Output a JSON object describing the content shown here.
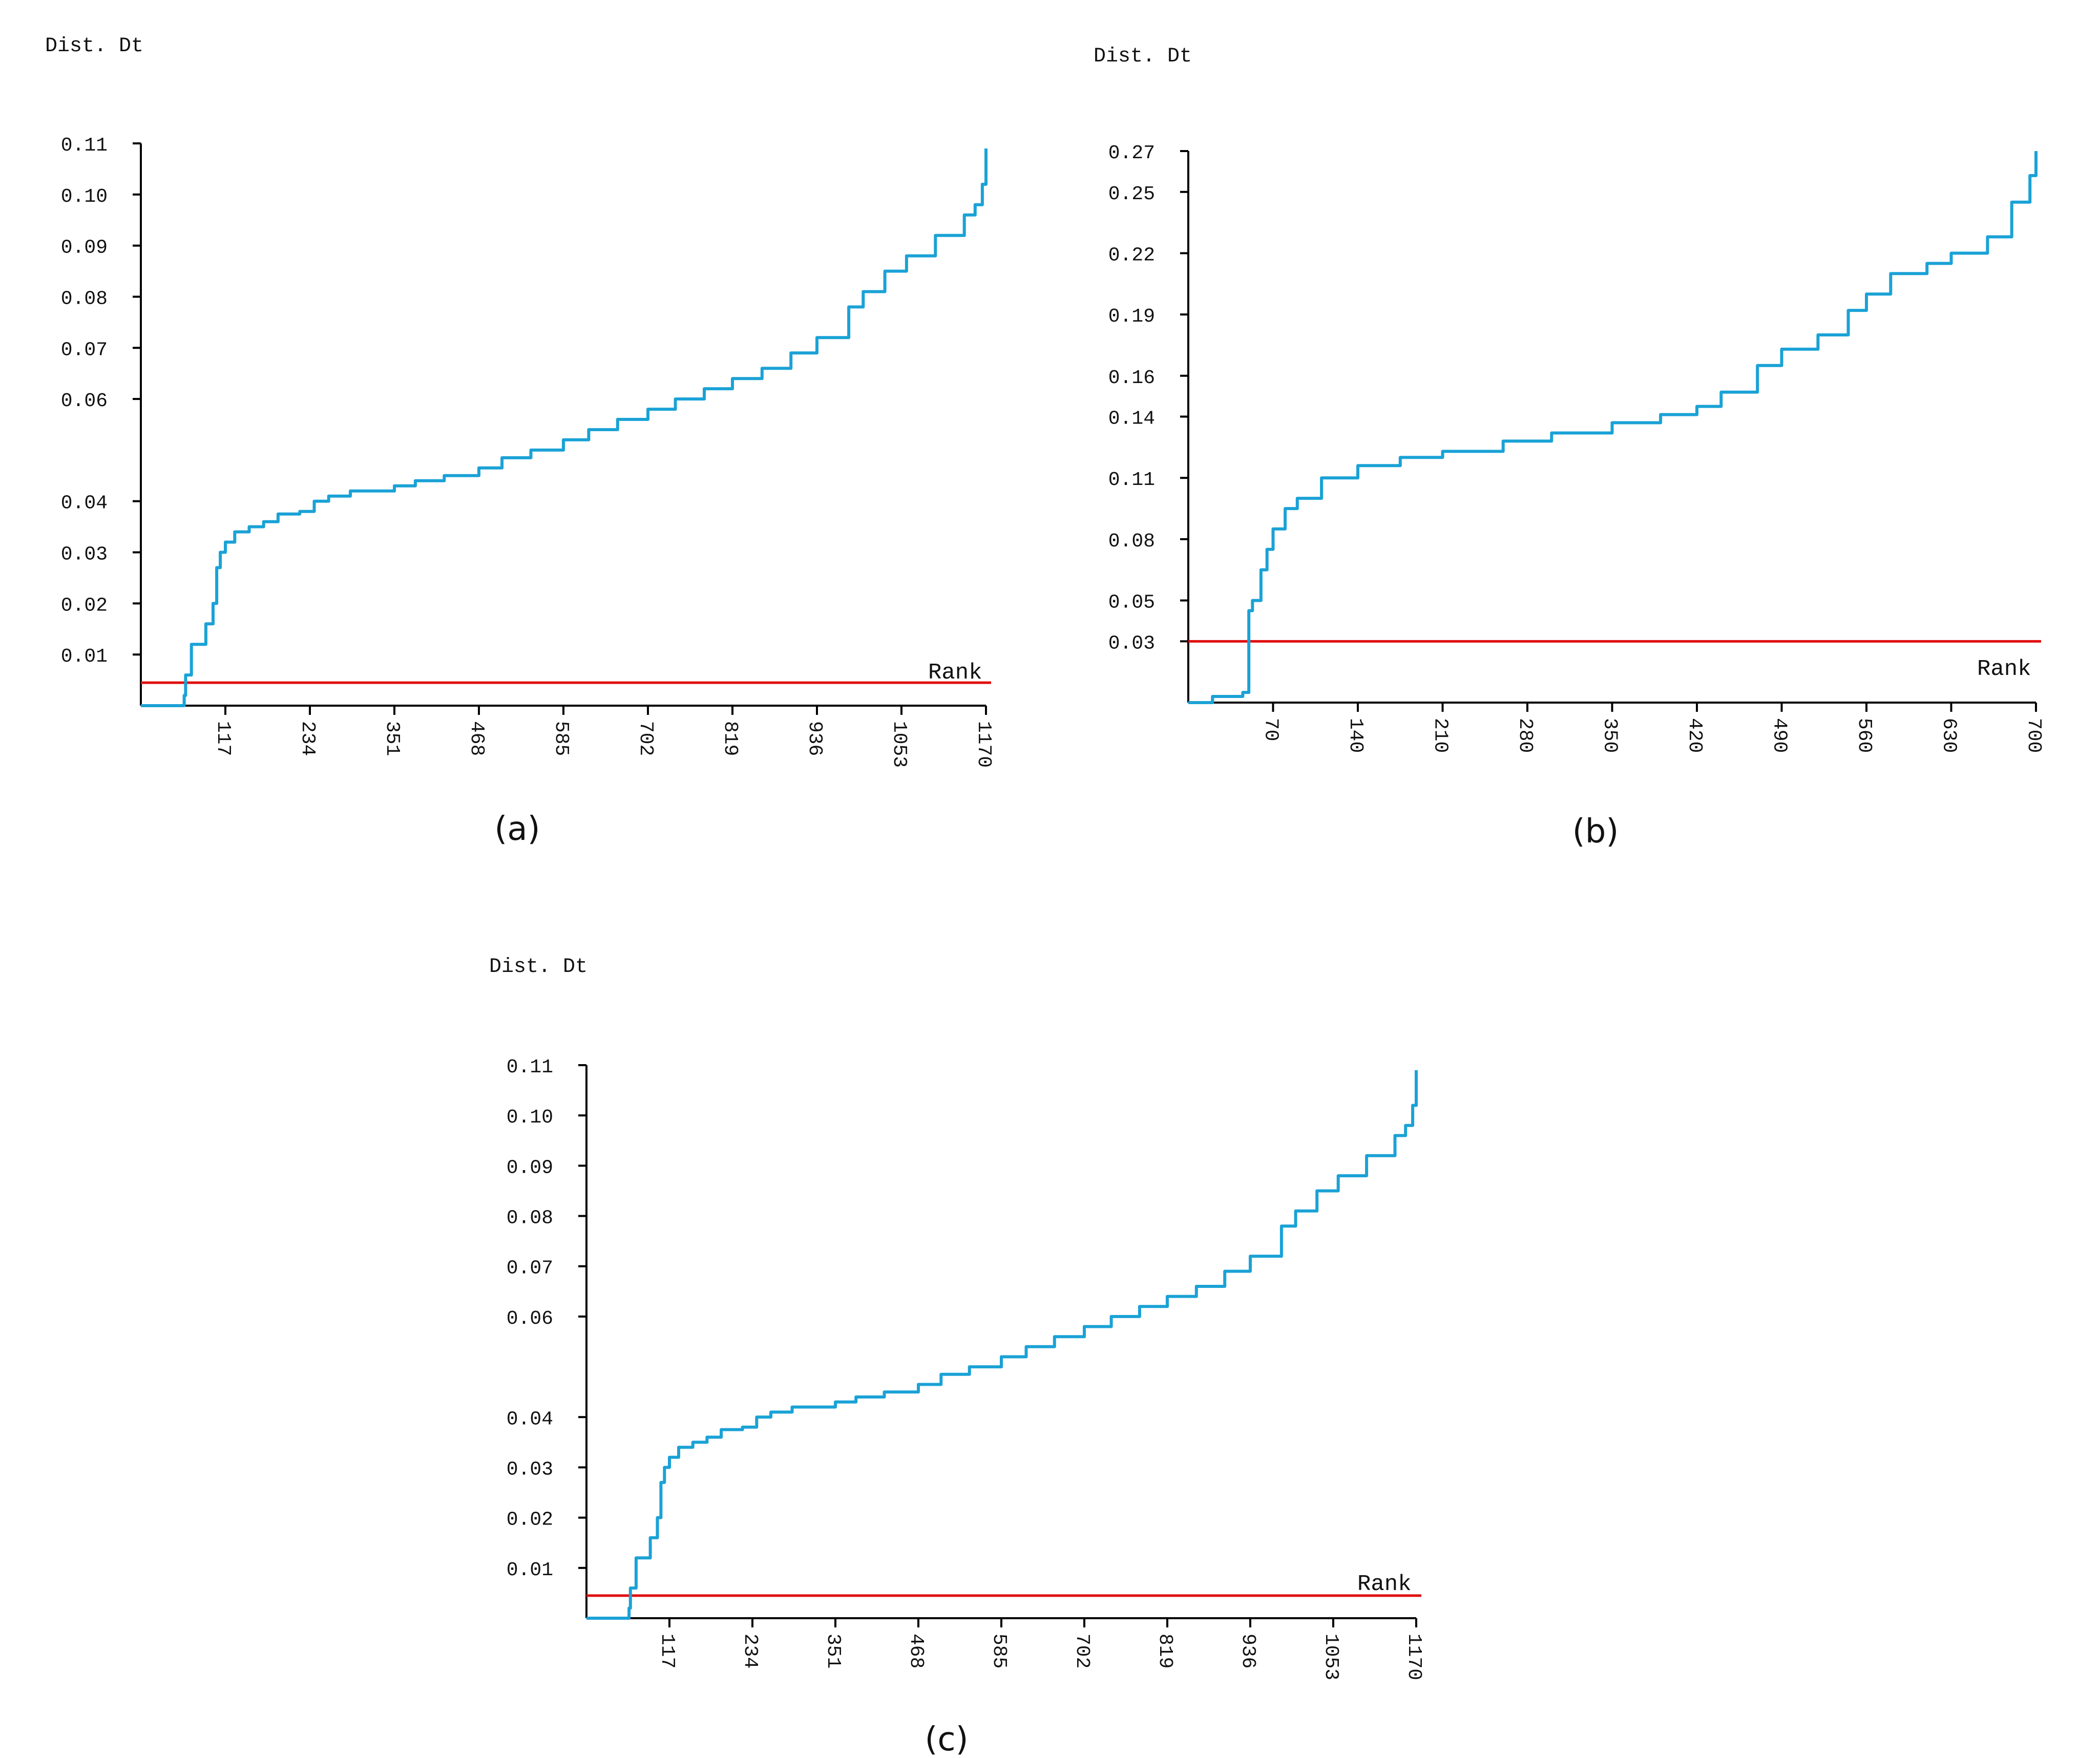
{
  "panels": [
    {
      "caption": "(a)",
      "ylabel": "Dist. Dt",
      "xlabel": "Rank"
    },
    {
      "caption": "(b)",
      "ylabel": "Dist. Dt",
      "xlabel": "Rank"
    },
    {
      "caption": "(c)",
      "ylabel": "Dist. Dt",
      "xlabel": "Rank"
    }
  ],
  "colors": {
    "curve": "#1aa2d6",
    "threshold": "#e01010",
    "axis": "#000000"
  },
  "chart_data": [
    {
      "type": "line",
      "title": "",
      "xlabel": "Rank",
      "ylabel": "Dist. Dt",
      "xlim": [
        0,
        1170
      ],
      "ylim": [
        0,
        0.11
      ],
      "x_ticks": [
        "117",
        "234",
        "351",
        "468",
        "585",
        "702",
        "819",
        "936",
        "1053",
        "1170"
      ],
      "y_ticks": [
        "0.01",
        "0.02",
        "0.03",
        "0.04",
        "0.06",
        "0.07",
        "0.08",
        "0.09",
        "0.10",
        "0.11"
      ],
      "grid": false,
      "series": [
        {
          "x": [
            0,
            55,
            60,
            62,
            70,
            90,
            100,
            105,
            110,
            117,
            130,
            150,
            170,
            190,
            200,
            220,
            240,
            260,
            290,
            320,
            351,
            380,
            420,
            468,
            500,
            540,
            585,
            620,
            660,
            702,
            740,
            780,
            819,
            860,
            900,
            936,
            980,
            1000,
            1030,
            1060,
            1100,
            1140,
            1155,
            1165,
            1170
          ],
          "y": [
            0,
            0,
            0.002,
            0.006,
            0.012,
            0.016,
            0.02,
            0.027,
            0.03,
            0.032,
            0.034,
            0.035,
            0.036,
            0.0375,
            0.0375,
            0.038,
            0.04,
            0.041,
            0.042,
            0.042,
            0.043,
            0.044,
            0.045,
            0.0465,
            0.0485,
            0.05,
            0.052,
            0.054,
            0.056,
            0.058,
            0.06,
            0.062,
            0.064,
            0.066,
            0.069,
            0.072,
            0.078,
            0.081,
            0.085,
            0.088,
            0.092,
            0.096,
            0.098,
            0.102,
            0.109
          ]
        },
        {
          "x": [
            0,
            1170
          ],
          "y": [
            0.0045,
            0.0045
          ]
        }
      ]
    },
    {
      "type": "line",
      "title": "",
      "xlabel": "Rank",
      "ylabel": "Dist. Dt",
      "xlim": [
        0,
        700
      ],
      "ylim": [
        0,
        0.27
      ],
      "x_ticks": [
        "70",
        "140",
        "210",
        "280",
        "350",
        "420",
        "490",
        "560",
        "630",
        "700"
      ],
      "y_ticks": [
        "0.03",
        "0.05",
        "0.08",
        "0.11",
        "0.14",
        "0.16",
        "0.19",
        "0.22",
        "0.25",
        "0.27"
      ],
      "grid": false,
      "series": [
        {
          "x": [
            0,
            20,
            45,
            50,
            53,
            60,
            65,
            70,
            80,
            90,
            110,
            140,
            175,
            210,
            260,
            300,
            350,
            390,
            420,
            440,
            470,
            490,
            520,
            545,
            560,
            580,
            610,
            630,
            660,
            680,
            695,
            700
          ],
          "y": [
            0,
            0.003,
            0.005,
            0.045,
            0.05,
            0.065,
            0.075,
            0.085,
            0.095,
            0.1,
            0.11,
            0.116,
            0.12,
            0.123,
            0.128,
            0.132,
            0.137,
            0.141,
            0.145,
            0.152,
            0.165,
            0.173,
            0.18,
            0.192,
            0.2,
            0.21,
            0.215,
            0.22,
            0.228,
            0.245,
            0.258,
            0.27
          ]
        },
        {
          "x": [
            0,
            700
          ],
          "y": [
            0.03,
            0.03
          ]
        }
      ]
    },
    {
      "type": "line",
      "title": "",
      "xlabel": "Rank",
      "ylabel": "Dist. Dt",
      "xlim": [
        0,
        1170
      ],
      "ylim": [
        0,
        0.11
      ],
      "x_ticks": [
        "117",
        "234",
        "351",
        "468",
        "585",
        "702",
        "819",
        "936",
        "1053",
        "1170"
      ],
      "y_ticks": [
        "0.01",
        "0.02",
        "0.03",
        "0.04",
        "0.06",
        "0.07",
        "0.08",
        "0.09",
        "0.10",
        "0.11"
      ],
      "grid": false,
      "series": [
        {
          "x": [
            0,
            55,
            60,
            62,
            70,
            90,
            100,
            105,
            110,
            117,
            130,
            150,
            170,
            190,
            200,
            220,
            240,
            260,
            290,
            320,
            351,
            380,
            420,
            468,
            500,
            540,
            585,
            620,
            660,
            702,
            740,
            780,
            819,
            860,
            900,
            936,
            980,
            1000,
            1030,
            1060,
            1100,
            1140,
            1155,
            1165,
            1170
          ],
          "y": [
            0,
            0,
            0.002,
            0.006,
            0.012,
            0.016,
            0.02,
            0.027,
            0.03,
            0.032,
            0.034,
            0.035,
            0.036,
            0.0375,
            0.0375,
            0.038,
            0.04,
            0.041,
            0.042,
            0.042,
            0.043,
            0.044,
            0.045,
            0.0465,
            0.0485,
            0.05,
            0.052,
            0.054,
            0.056,
            0.058,
            0.06,
            0.062,
            0.064,
            0.066,
            0.069,
            0.072,
            0.078,
            0.081,
            0.085,
            0.088,
            0.092,
            0.096,
            0.098,
            0.102,
            0.109
          ]
        },
        {
          "x": [
            0,
            1170
          ],
          "y": [
            0.0045,
            0.0045
          ]
        }
      ]
    }
  ]
}
